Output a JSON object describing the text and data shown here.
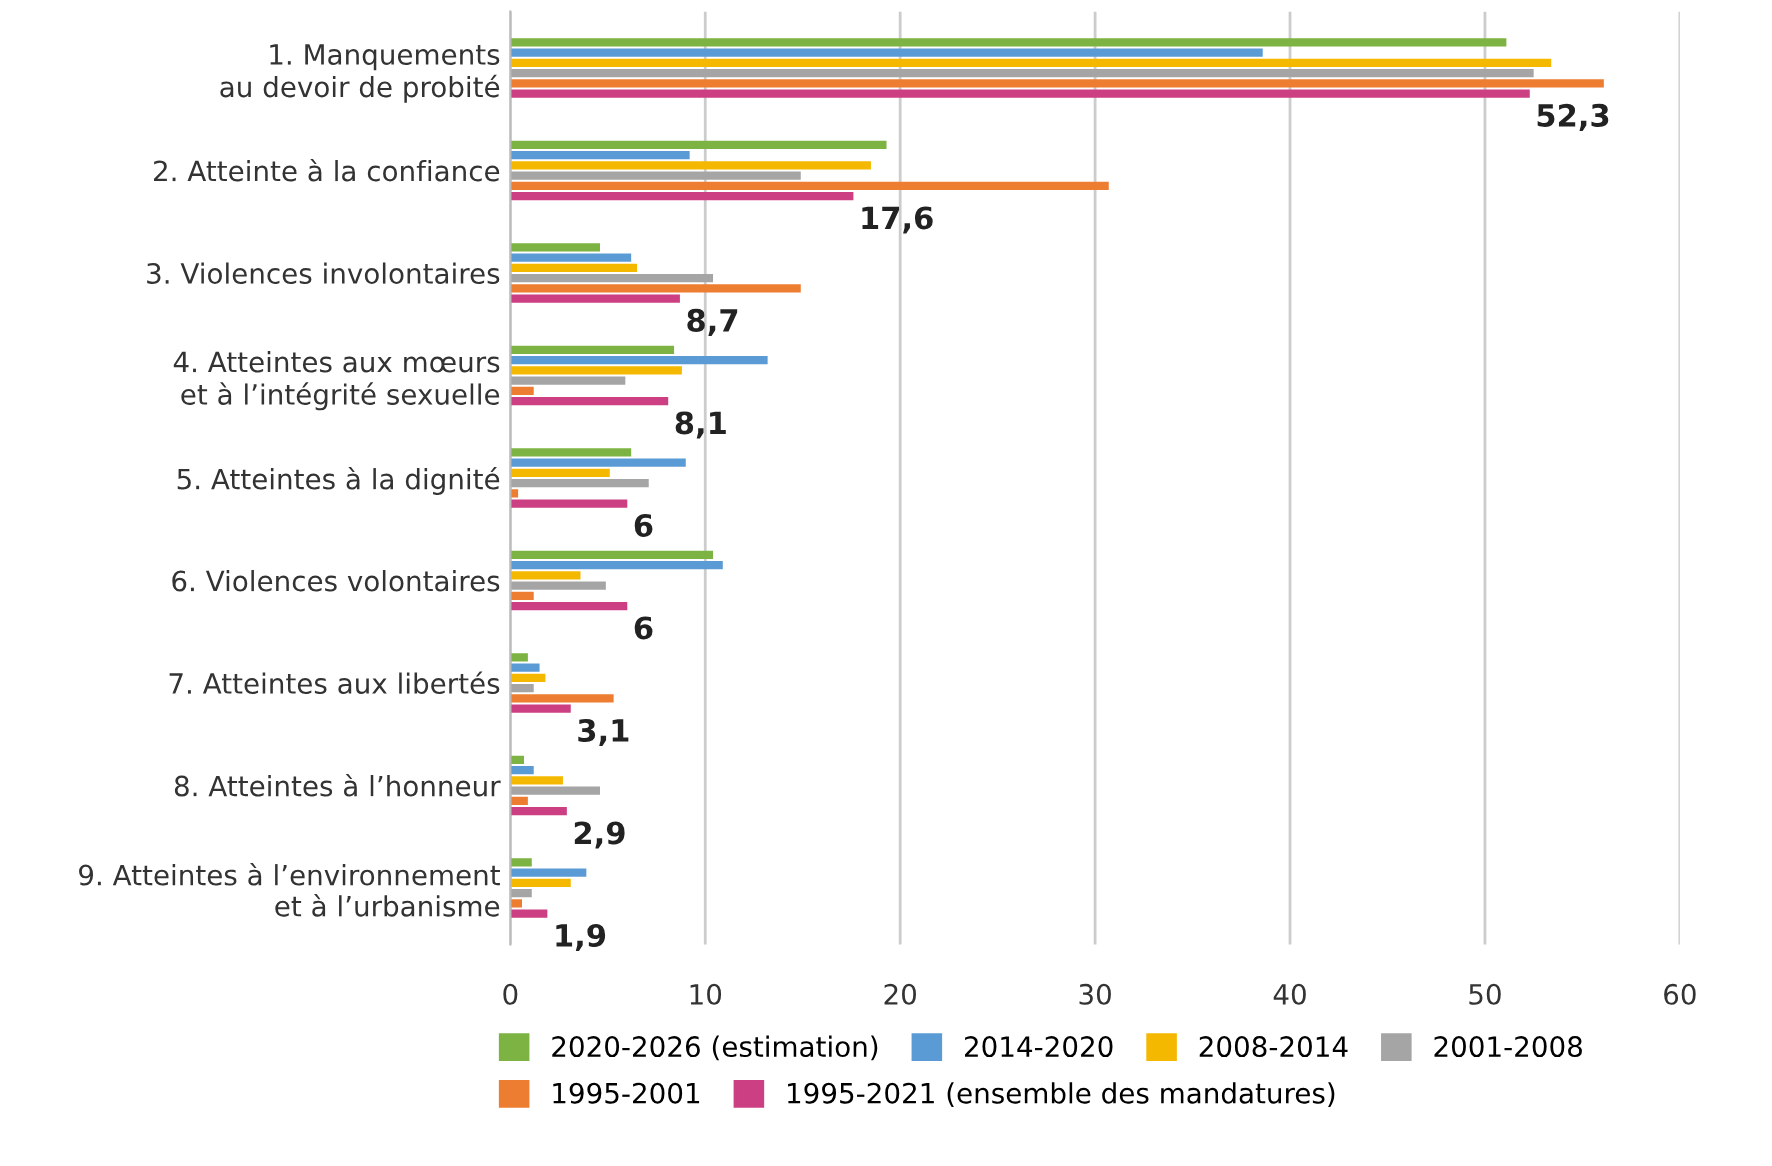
{
  "chart_data": {
    "type": "bar",
    "orientation": "horizontal",
    "categories": [
      "1. Manquements\nau devoir de probité",
      "2. Atteinte à la confiance",
      "3. Violences involontaires",
      "4. Atteintes aux mœurs\net à l’intégrité sexuelle",
      "5. Atteintes à la dignité",
      "6. Violences volontaires",
      "7. Atteintes aux libertés",
      "8. Atteintes à l’honneur",
      "9. Atteintes à l’environnement\net à l’urbanisme"
    ],
    "series": [
      {
        "name": "2020-2026 (estimation)",
        "color": "#7cb342",
        "values": [
          51.1,
          19.3,
          4.6,
          8.4,
          6.2,
          10.4,
          0.9,
          0.7,
          1.1
        ]
      },
      {
        "name": "2014-2020",
        "color": "#5b9bd5",
        "values": [
          38.6,
          9.2,
          6.2,
          13.2,
          9.0,
          10.9,
          1.5,
          1.2,
          3.9
        ]
      },
      {
        "name": "2008-2014",
        "color": "#f5b800",
        "values": [
          53.4,
          18.5,
          6.5,
          8.8,
          5.1,
          3.6,
          1.8,
          2.7,
          3.1
        ]
      },
      {
        "name": "2001-2008",
        "color": "#a5a5a5",
        "values": [
          52.5,
          14.9,
          10.4,
          5.9,
          7.1,
          4.9,
          1.2,
          4.6,
          1.1
        ]
      },
      {
        "name": "1995-2001",
        "color": "#ed7d31",
        "values": [
          56.1,
          30.7,
          14.9,
          1.2,
          0.4,
          1.2,
          5.3,
          0.9,
          0.6
        ]
      },
      {
        "name": "1995-2021 (ensemble des mandatures)",
        "color": "#cc3f82",
        "values": [
          52.3,
          17.6,
          8.7,
          8.1,
          6,
          6,
          3.1,
          2.9,
          1.9
        ],
        "value_labels": [
          "52,3",
          "17,6",
          "8,7",
          "8,1",
          "6",
          "6",
          "3,1",
          "2,9",
          "1,9"
        ]
      }
    ],
    "xlim": [
      0,
      60
    ],
    "xticks": [
      0,
      10,
      20,
      30,
      40,
      50,
      60
    ],
    "grid": "x",
    "legend": "bottom"
  }
}
